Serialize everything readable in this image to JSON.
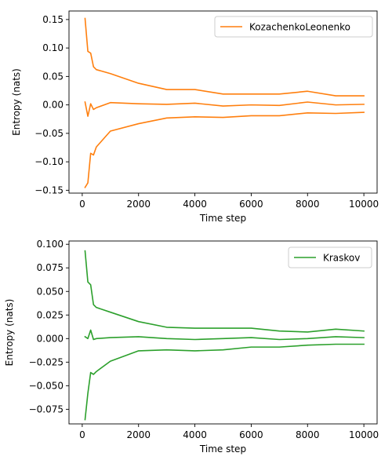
{
  "chart_data": [
    {
      "type": "line",
      "xlabel": "Time step",
      "ylabel": "Entropy (nats)",
      "xlim": [
        -470,
        10470
      ],
      "ylim": [
        -0.155,
        0.165
      ],
      "x_ticks": [
        0,
        2000,
        4000,
        6000,
        8000,
        10000
      ],
      "x_tick_labels": [
        "0",
        "2000",
        "4000",
        "6000",
        "8000",
        "10000"
      ],
      "y_ticks": [
        -0.15,
        -0.1,
        -0.05,
        0.0,
        0.05,
        0.1,
        0.15
      ],
      "y_tick_labels": [
        "−0.15",
        "−0.10",
        "−0.05",
        "0.00",
        "0.05",
        "0.10",
        "0.15"
      ],
      "grid": false,
      "legend_position": "upper right",
      "color": "#ff7f0e",
      "legend": [
        "KozachenkoLeonenko"
      ],
      "x": [
        100,
        200,
        300,
        400,
        500,
        1000,
        2000,
        3000,
        4000,
        5000,
        6000,
        7000,
        8000,
        9000,
        10000
      ],
      "series": [
        {
          "name": "KozachenkoLeonenko",
          "values": [
            0.152,
            0.094,
            0.091,
            0.067,
            0.062,
            0.055,
            0.038,
            0.027,
            0.027,
            0.019,
            0.019,
            0.019,
            0.024,
            0.016,
            0.016
          ]
        },
        {
          "values": [
            0.005,
            -0.02,
            0.002,
            -0.008,
            -0.005,
            0.004,
            0.002,
            0.001,
            0.003,
            -0.002,
            0.0,
            -0.001,
            0.005,
            0.0,
            0.001
          ]
        },
        {
          "values": [
            -0.145,
            -0.137,
            -0.085,
            -0.088,
            -0.074,
            -0.046,
            -0.033,
            -0.023,
            -0.021,
            -0.022,
            -0.019,
            -0.019,
            -0.014,
            -0.015,
            -0.013
          ]
        }
      ]
    },
    {
      "type": "line",
      "xlabel": "Time step",
      "ylabel": "Entropy (nats)",
      "xlim": [
        -470,
        10470
      ],
      "ylim": [
        -0.0905,
        0.1035
      ],
      "x_ticks": [
        0,
        2000,
        4000,
        6000,
        8000,
        10000
      ],
      "x_tick_labels": [
        "0",
        "2000",
        "4000",
        "6000",
        "8000",
        "10000"
      ],
      "y_ticks": [
        -0.075,
        -0.05,
        -0.025,
        0.0,
        0.025,
        0.05,
        0.075,
        0.1
      ],
      "y_tick_labels": [
        "−0.075",
        "−0.050",
        "−0.025",
        "0.000",
        "0.025",
        "0.050",
        "0.075",
        "0.100"
      ],
      "grid": false,
      "legend_position": "upper right",
      "color": "#2ca02c",
      "legend": [
        "Kraskov"
      ],
      "x": [
        100,
        200,
        300,
        400,
        500,
        1000,
        2000,
        3000,
        4000,
        5000,
        6000,
        7000,
        8000,
        9000,
        10000
      ],
      "series": [
        {
          "name": "Kraskov",
          "values": [
            0.093,
            0.06,
            0.057,
            0.036,
            0.033,
            0.028,
            0.018,
            0.012,
            0.011,
            0.011,
            0.011,
            0.008,
            0.007,
            0.01,
            0.008
          ]
        },
        {
          "values": [
            0.002,
            0.0,
            0.009,
            -0.001,
            0.0,
            0.001,
            0.002,
            0.0,
            -0.001,
            0.0,
            0.001,
            -0.001,
            0.0,
            0.002,
            0.001
          ]
        },
        {
          "values": [
            -0.086,
            -0.058,
            -0.036,
            -0.038,
            -0.035,
            -0.024,
            -0.013,
            -0.012,
            -0.013,
            -0.012,
            -0.009,
            -0.009,
            -0.007,
            -0.006,
            -0.006
          ]
        }
      ]
    }
  ]
}
